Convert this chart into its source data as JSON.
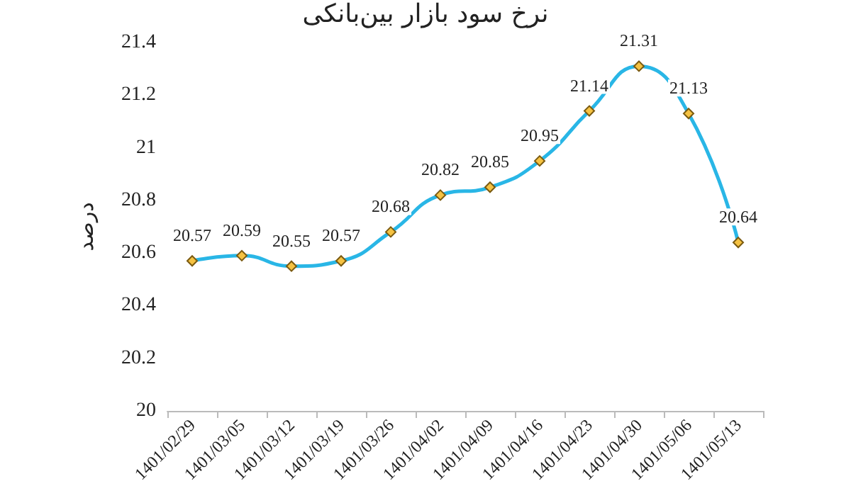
{
  "chart_data": {
    "type": "line",
    "title": "نرخ سود بازار بین‌بانکی",
    "ylabel": "درصد",
    "categories": [
      "1401/02/29",
      "1401/03/05",
      "1401/03/12",
      "1401/03/19",
      "1401/03/26",
      "1401/04/02",
      "1401/04/09",
      "1401/04/16",
      "1401/04/23",
      "1401/04/30",
      "1401/05/06",
      "1401/05/13"
    ],
    "series": [
      {
        "color": "#29b6e6",
        "values": [
          20.57,
          20.59,
          20.55,
          20.57,
          20.68,
          20.82,
          20.85,
          20.95,
          21.14,
          21.31,
          21.13,
          20.64
        ]
      }
    ],
    "ylim": [
      20,
      21.4
    ],
    "yticks": [
      20,
      20.2,
      20.4,
      20.6,
      20.8,
      21,
      21.2,
      21.4
    ],
    "data_labels": true,
    "marker": "diamond",
    "grid": false
  }
}
